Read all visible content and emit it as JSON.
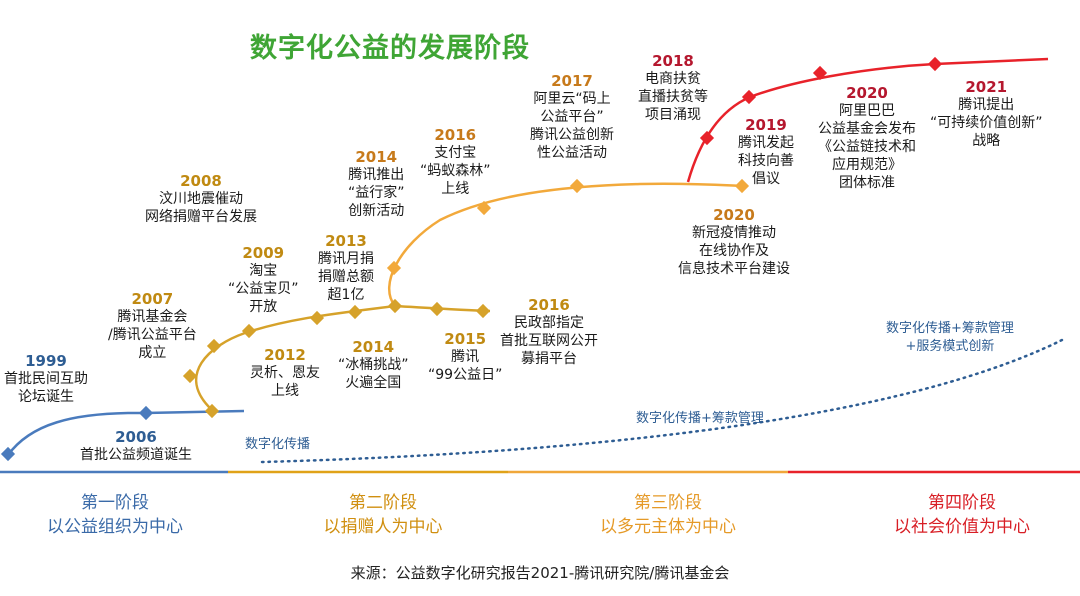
{
  "title": "数字化公益的发展阶段",
  "events": [
    {
      "id": "1999",
      "year": "1999",
      "text": "首批民间互助\n论坛诞生"
    },
    {
      "id": "2006",
      "year": "2006",
      "text": "首批公益频道诞生"
    },
    {
      "id": "2007",
      "year": "2007",
      "text": "腾讯基金会\n/腾讯公益平台\n成立"
    },
    {
      "id": "2008",
      "year": "2008",
      "text": "汶川地震催动\n网络捐赠平台发展"
    },
    {
      "id": "2009",
      "year": "2009",
      "text": "淘宝\n“公益宝贝”\n开放"
    },
    {
      "id": "2012",
      "year": "2012",
      "text": "灵析、恩友\n上线"
    },
    {
      "id": "2013",
      "year": "2013",
      "text": "腾讯月捐\n捐赠总额\n超1亿"
    },
    {
      "id": "2014a",
      "year": "2014",
      "text": "腾讯推出\n“益行家”\n创新活动"
    },
    {
      "id": "2014b",
      "year": "2014",
      "text": "“冰桶挑战”\n火遍全国"
    },
    {
      "id": "2015",
      "year": "2015",
      "text": "腾讯\n“99公益日”"
    },
    {
      "id": "2016a",
      "year": "2016",
      "text": "支付宝\n“蚂蚁森林”\n上线"
    },
    {
      "id": "2016b",
      "year": "2016",
      "text": "民政部指定\n首批互联网公开\n募捐平台"
    },
    {
      "id": "2017",
      "year": "2017",
      "text": "阿里云“码上\n公益平台”\n腾讯公益创新\n性公益活动"
    },
    {
      "id": "2018",
      "year": "2018",
      "text": "电商扶贫\n直播扶贫等\n项目涌现"
    },
    {
      "id": "2019",
      "year": "2019",
      "text": "腾讯发起\n科技向善\n倡议"
    },
    {
      "id": "2020a",
      "year": "2020",
      "text": "新冠疫情推动\n在线协作及\n信息技术平台建设"
    },
    {
      "id": "2020b",
      "year": "2020",
      "text": "阿里巴巴\n公益基金会发布\n《公益链技术和\n应用规范》\n团体标准"
    },
    {
      "id": "2021",
      "year": "2021",
      "text": "腾讯提出\n“可持续价值创新”\n战略"
    }
  ],
  "modes": {
    "m1": "数字化传播",
    "m2": "数字化传播+筹款管理",
    "m3": "数字化传播+筹款管理\n+服务模式创新"
  },
  "stages": [
    {
      "name": "第一阶段",
      "desc": "以公益组织为中心",
      "color": "#4a7bbd"
    },
    {
      "name": "第二阶段",
      "desc": "以捐赠人为中心",
      "color": "#e0a218"
    },
    {
      "name": "第三阶段",
      "desc": "以多元主体为中心",
      "color": "#f0a73a"
    },
    {
      "name": "第四阶段",
      "desc": "以社会价值为中心",
      "color": "#e8222a"
    }
  ],
  "colors": {
    "title": "#3fa535",
    "blue": "#4a7bbd",
    "gold": "#d6a22a",
    "orange": "#f2a93b",
    "red": "#e8222a",
    "mode": "#2e5d93"
  },
  "source": "来源：公益数字化研究报告2021-腾讯研究院/腾讯基金会"
}
